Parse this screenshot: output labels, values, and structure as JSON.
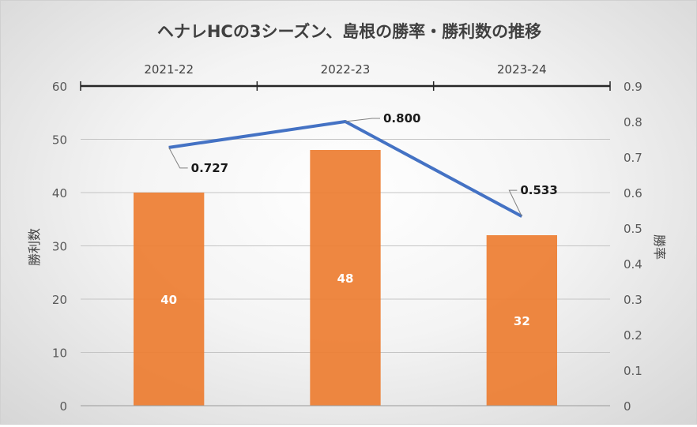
{
  "chart_data": {
    "type": "bar",
    "title": "ヘナレHCの3シーズン、島根の勝率・勝利数の推移",
    "categories": [
      "2021-22",
      "2022-23",
      "2023-24"
    ],
    "ylabel": "勝利数",
    "y2label": "勝率",
    "ylim": [
      0,
      60
    ],
    "y2lim": [
      0,
      0.9
    ],
    "y_ticks": [
      "0",
      "10",
      "20",
      "30",
      "40",
      "50",
      "60"
    ],
    "y2_ticks": [
      "0",
      "0.1",
      "0.2",
      "0.3",
      "0.4",
      "0.5",
      "0.6",
      "0.7",
      "0.8",
      "0.9"
    ],
    "grid": true,
    "category_axis_position": "top",
    "series": [
      {
        "type": "bar",
        "axis": "left",
        "values": [
          40,
          48,
          32
        ],
        "labels": [
          "40",
          "48",
          "32"
        ],
        "color": "#ED7D31"
      },
      {
        "type": "line",
        "axis": "right",
        "values": [
          0.727,
          0.8,
          0.533
        ],
        "labels": [
          "0.727",
          "0.800",
          "0.533"
        ],
        "color": "#4472C4"
      }
    ]
  }
}
